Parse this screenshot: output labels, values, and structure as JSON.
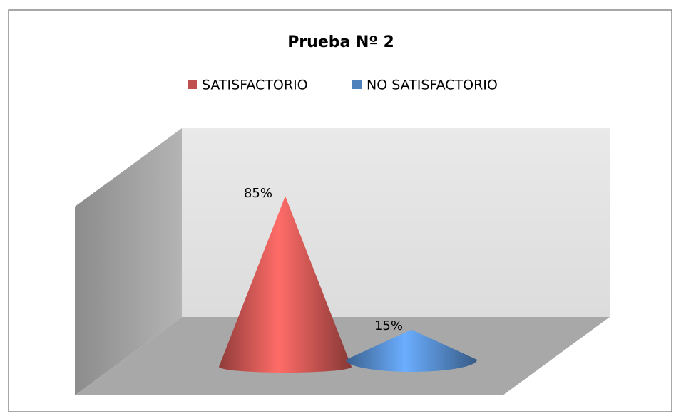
{
  "chart_data": {
    "type": "cone",
    "title": "Prueba Nº 2",
    "series": [
      {
        "name": "SATISFACTORIO",
        "color": "#c0504d",
        "values": [
          85
        ],
        "value_labels": [
          "85%"
        ]
      },
      {
        "name": "NO SATISFACTORIO",
        "color": "#4f81bd",
        "values": [
          15
        ],
        "value_labels": [
          "15%"
        ]
      }
    ]
  }
}
